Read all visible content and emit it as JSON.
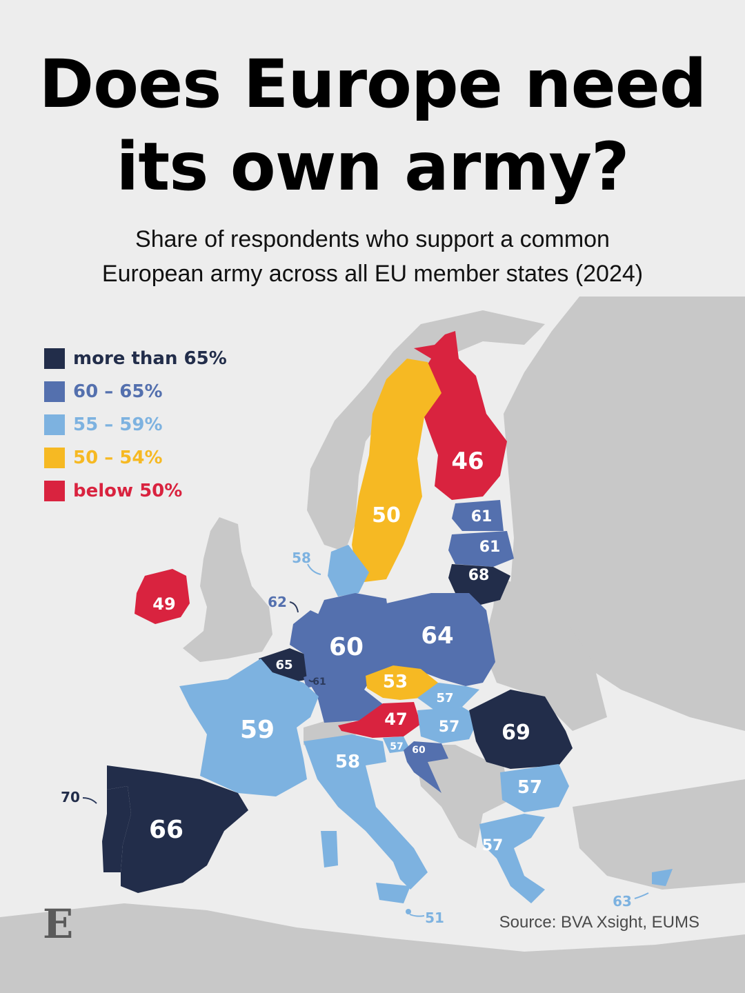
{
  "title": {
    "line1": "Does Europe need",
    "line2": "its own army?"
  },
  "subtitle": {
    "line1": "Share of respondents who support a common",
    "line2": "European army across all EU member states (2024)"
  },
  "colors": {
    "background": "#ededed",
    "land": "#c8c8c8",
    "dark_navy": "#222d4a",
    "mid_blue": "#5470ae",
    "light_blue": "#7db2e0",
    "yellow": "#f6b923",
    "red": "#d9233f"
  },
  "legend": [
    {
      "label": "more than 65%",
      "color": "#222d4a"
    },
    {
      "label": "60 – 65%",
      "color": "#5470ae"
    },
    {
      "label": "55 – 59%",
      "color": "#7db2e0"
    },
    {
      "label": "50 – 54%",
      "color": "#f6b923"
    },
    {
      "label": "below 50%",
      "color": "#d9233f"
    }
  ],
  "values": {
    "finland": "46",
    "sweden": "50",
    "estonia": "61",
    "latvia": "61",
    "lithuania": "68",
    "denmark": "58",
    "ireland": "49",
    "netherlands": "62",
    "belgium": "65",
    "luxembourg": "61",
    "germany": "60",
    "poland": "64",
    "czechia": "53",
    "slovakia": "57",
    "austria": "47",
    "hungary": "57",
    "slovenia": "57",
    "croatia": "60",
    "romania": "69",
    "bulgaria": "57",
    "france": "59",
    "italy": "58",
    "portugal": "70",
    "spain": "66",
    "greece": "57",
    "malta": "51",
    "cyprus": "63"
  },
  "source": "Source: BVA Xsight, EUMS",
  "logo": "E"
}
